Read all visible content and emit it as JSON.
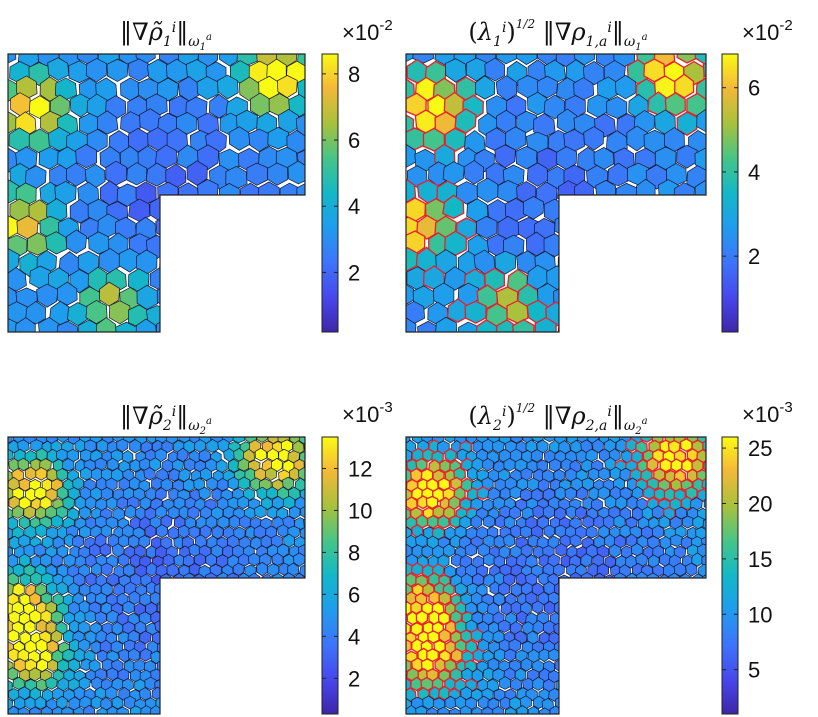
{
  "chart_data": [
    {
      "type": "heatmap",
      "title": "‖∇ρ̃₁ⁱ‖_ω₁ᵃ",
      "colorbar": {
        "exponent_label": "×10⁻²",
        "ticks": [
          2,
          4,
          6,
          8
        ],
        "range": [
          0.2,
          8.6
        ]
      },
      "colormap": "parula",
      "mesh": "L-shaped polygonal mesh (coarse)",
      "highlight_edges": false,
      "hotspots": [
        {
          "where": "top-left",
          "level": 0.85
        },
        {
          "where": "top-right",
          "level": 0.9
        },
        {
          "where": "left-middle",
          "level": 0.7
        },
        {
          "where": "bottom",
          "level": 0.5
        }
      ]
    },
    {
      "type": "heatmap",
      "title": "(λ₁ⁱ)^(1/2) ‖∇ρ₁,ₐⁱ‖_ω₁ᵃ",
      "colorbar": {
        "exponent_label": "×10⁻²",
        "ticks": [
          2,
          4,
          6
        ],
        "range": [
          0.2,
          6.8
        ]
      },
      "colormap": "parula",
      "mesh": "L-shaped polygonal mesh (coarse)",
      "highlight_edges": true,
      "hotspots": [
        {
          "where": "top-left",
          "level": 0.95
        },
        {
          "where": "top-right",
          "level": 0.9
        },
        {
          "where": "left-middle",
          "level": 0.75
        },
        {
          "where": "bottom",
          "level": 0.5
        }
      ]
    },
    {
      "type": "heatmap",
      "title": "‖∇ρ̃₂ⁱ‖_ω₂ᵃ",
      "colorbar": {
        "exponent_label": "×10⁻³",
        "ticks": [
          2,
          4,
          6,
          8,
          10,
          12
        ],
        "range": [
          0.3,
          13.5
        ]
      },
      "colormap": "parula",
      "mesh": "L-shaped polygonal mesh (fine)",
      "highlight_edges": false,
      "hotspots": [
        {
          "where": "top-left",
          "level": 0.9
        },
        {
          "where": "top-right",
          "level": 0.9
        },
        {
          "where": "left-middle",
          "level": 0.8
        },
        {
          "where": "bottom-left",
          "level": 0.85
        }
      ]
    },
    {
      "type": "heatmap",
      "title": "(λ₂ⁱ)^(1/2) ‖∇ρ₂,ₐⁱ‖_ω₂ᵃ",
      "colorbar": {
        "exponent_label": "×10⁻³",
        "ticks": [
          5,
          10,
          15,
          20,
          25
        ],
        "range": [
          1,
          26
        ]
      },
      "colormap": "parula",
      "mesh": "L-shaped polygonal mesh (fine)",
      "highlight_edges": true,
      "hotspots": [
        {
          "where": "top-left",
          "level": 0.9
        },
        {
          "where": "top-right",
          "level": 0.85
        },
        {
          "where": "left-middle",
          "level": 0.8
        },
        {
          "where": "bottom-left",
          "level": 0.85
        }
      ]
    }
  ]
}
